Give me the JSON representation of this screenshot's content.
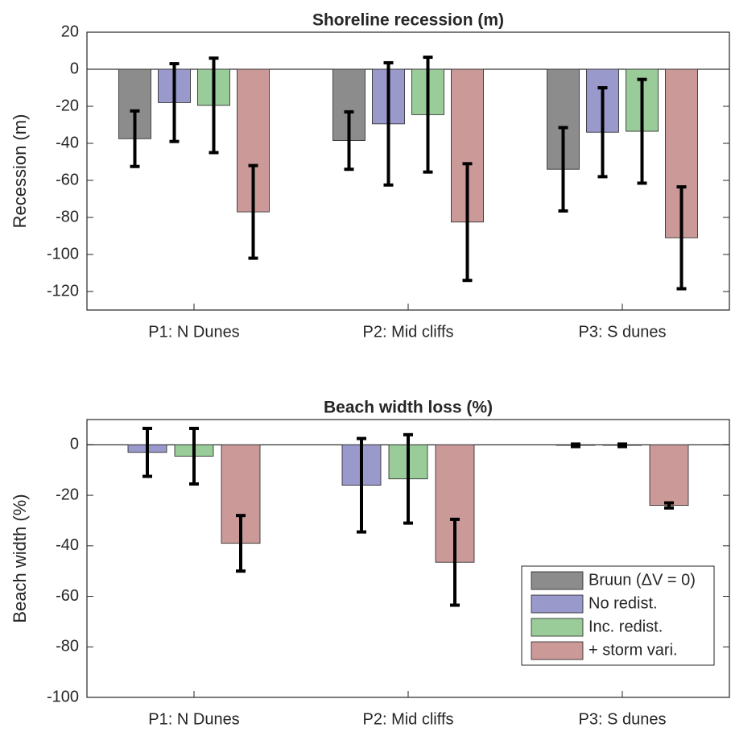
{
  "chart_data": [
    {
      "type": "bar",
      "title": "Shoreline recession (m)",
      "y_label": "Recession (m)",
      "categories": [
        "P1: N Dunes",
        "P2: Mid cliffs",
        "P3: S dunes"
      ],
      "series": [
        {
          "name": "Bruun (ΔV = 0)",
          "color": "#8c8c8c",
          "values": [
            -37.5,
            -38.5,
            -54
          ],
          "errors": [
            15,
            15.5,
            22.5
          ]
        },
        {
          "name": "No redist.",
          "color": "#9999cc",
          "values": [
            -18,
            -29.5,
            -34
          ],
          "errors": [
            21,
            33,
            24
          ]
        },
        {
          "name": "Inc. redist.",
          "color": "#99cc99",
          "values": [
            -19.5,
            -24.5,
            -33.5
          ],
          "errors": [
            25.5,
            31,
            28
          ]
        },
        {
          "name": "+ storm vari.",
          "color": "#cc9999",
          "values": [
            -77,
            -82.5,
            -91
          ],
          "errors": [
            25,
            31.5,
            27.5
          ]
        }
      ],
      "ylim": [
        -130,
        20
      ],
      "yticks": [
        -120,
        -100,
        -80,
        -60,
        -40,
        -20,
        0,
        20
      ]
    },
    {
      "type": "bar",
      "title": "Beach width loss (%)",
      "y_label": "Beach width (%)",
      "categories": [
        "P1: N Dunes",
        "P2: Mid cliffs",
        "P3: S dunes"
      ],
      "series": [
        {
          "name": "No redist.",
          "color": "#9999cc",
          "values": [
            -3,
            -16,
            -0.2
          ],
          "errors": [
            9.5,
            18.5,
            0.5
          ]
        },
        {
          "name": "Inc. redist.",
          "color": "#99cc99",
          "values": [
            -4.5,
            -13.5,
            -0.2
          ],
          "errors": [
            11,
            17.5,
            0.5
          ]
        },
        {
          "name": "+ storm vari.",
          "color": "#cc9999",
          "values": [
            -39,
            -46.5,
            -24
          ],
          "errors": [
            11,
            17,
            1
          ]
        }
      ],
      "ylim": [
        -100,
        10
      ],
      "yticks": [
        -100,
        -80,
        -60,
        -40,
        -20,
        0
      ],
      "legend": "lower right"
    }
  ]
}
